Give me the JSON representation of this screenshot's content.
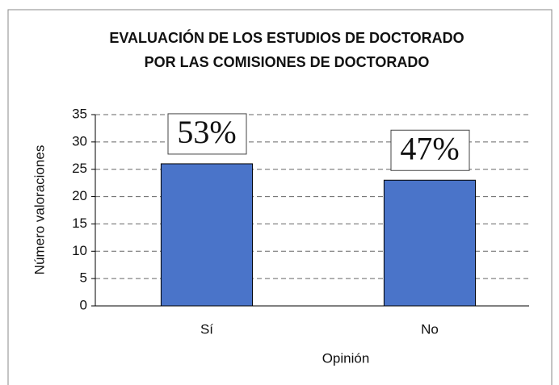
{
  "chart_data": {
    "type": "bar",
    "title": "EVALUACIÓN DE LOS ESTUDIOS DE DOCTORADO",
    "subtitle": "POR LAS COMISIONES DE DOCTORADO",
    "x_label": "Opinión",
    "y_label": "Número valoraciones",
    "categories": [
      "Sí",
      "No"
    ],
    "values": [
      26,
      23
    ],
    "annotations": [
      "53%",
      "47%"
    ],
    "color": "#4a74c9",
    "ylim": [
      0,
      35
    ],
    "yticks": [
      0,
      5,
      10,
      15,
      20,
      25,
      30,
      35
    ],
    "grid": true
  }
}
